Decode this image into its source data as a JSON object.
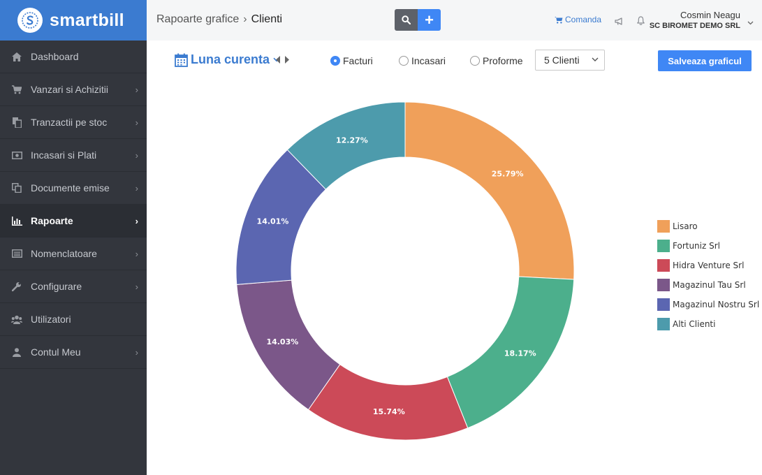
{
  "app": {
    "brand": "smartbill",
    "accent_color": "#3b7bd0"
  },
  "sidebar": {
    "items": [
      {
        "label": "Dashboard",
        "icon": "home-icon",
        "has_submenu": false,
        "active": false
      },
      {
        "label": "Vanzari si Achizitii",
        "icon": "cart-icon",
        "has_submenu": true,
        "active": false
      },
      {
        "label": "Tranzactii pe stoc",
        "icon": "copy-icon",
        "has_submenu": true,
        "active": false
      },
      {
        "label": "Incasari si Plati",
        "icon": "money-icon",
        "has_submenu": true,
        "active": false
      },
      {
        "label": "Documente emise",
        "icon": "documents-icon",
        "has_submenu": true,
        "active": false
      },
      {
        "label": "Rapoarte",
        "icon": "bar-chart-icon",
        "has_submenu": true,
        "active": true
      },
      {
        "label": "Nomenclatoare",
        "icon": "list-icon",
        "has_submenu": true,
        "active": false
      },
      {
        "label": "Configurare",
        "icon": "wrench-icon",
        "has_submenu": true,
        "active": false
      },
      {
        "label": "Utilizatori",
        "icon": "users-icon",
        "has_submenu": false,
        "active": false
      },
      {
        "label": "Contul Meu",
        "icon": "user-icon",
        "has_submenu": true,
        "active": false
      }
    ]
  },
  "header": {
    "breadcrumb_parent": "Rapoarte grafice",
    "breadcrumb_separator": "›",
    "breadcrumb_current": "Clienti",
    "add_label": "+",
    "comanda_label": "Comanda",
    "user_name": "Cosmin Neagu",
    "user_company": "SC BIROMET DEMO SRL"
  },
  "toolbar": {
    "period_label": "Luna curenta",
    "radios": [
      {
        "label": "Facturi",
        "checked": true
      },
      {
        "label": "Incasari",
        "checked": false
      },
      {
        "label": "Proforme",
        "checked": false
      }
    ],
    "clients_select_value": "5 Clienti",
    "save_label": "Salveaza graficul"
  },
  "chart_data": {
    "type": "pie",
    "variant": "donut",
    "title": "",
    "categories": [
      "Lisaro",
      "Fortuniz Srl",
      "Hidra Venture Srl",
      "Magazinul Tau Srl",
      "Magazinul Nostru Srl",
      "Alti Clienti"
    ],
    "values": [
      25.79,
      18.17,
      15.74,
      14.03,
      14.01,
      12.27
    ],
    "value_labels": [
      "25.79%",
      "18.17%",
      "15.74%",
      "14.03%",
      "14.01%",
      "12.27%"
    ],
    "colors": [
      "#f0a05a",
      "#4caf8c",
      "#cc4a58",
      "#7b5789",
      "#5b66b1",
      "#4d9bac"
    ],
    "legend_position": "right"
  }
}
